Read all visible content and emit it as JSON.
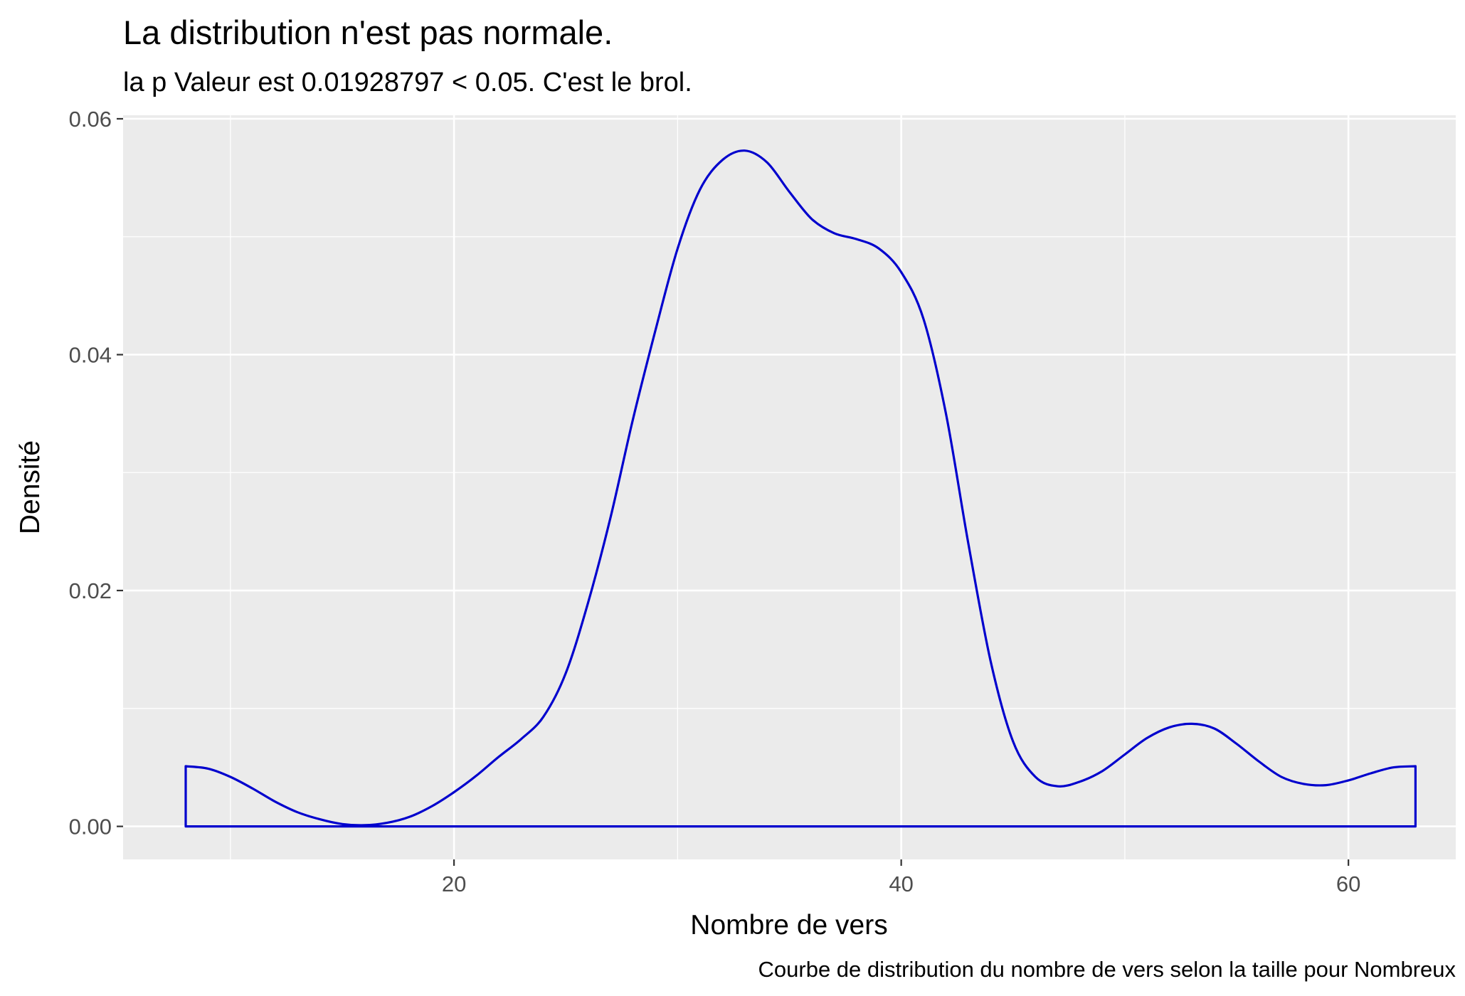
{
  "chart_data": {
    "type": "area",
    "title": "La distribution n'est pas normale.",
    "subtitle": "la p Valeur est  0.01928797  < 0.05. C'est le brol.",
    "xlabel": "Nombre de vers",
    "ylabel": "Densité",
    "caption": "Courbe de distribution du nombre de vers selon la taille pour  Nombreux",
    "xlim": [
      5.2,
      64.8
    ],
    "ylim": [
      -0.0028,
      0.0603
    ],
    "x_ticks": [
      20,
      40,
      60
    ],
    "x_tick_labels": [
      "20",
      "40",
      "60"
    ],
    "y_ticks": [
      0.0,
      0.02,
      0.04,
      0.06
    ],
    "y_tick_labels": [
      "0.00",
      "0.02",
      "0.04",
      "0.06"
    ],
    "grid": true,
    "panel_background": "#ebebeb",
    "grid_color": "#ffffff",
    "line_color": "#0000cd",
    "fill": "none",
    "series": [
      {
        "x": [
          8,
          9,
          10,
          11,
          12,
          13,
          14,
          15,
          16,
          17,
          18,
          19,
          20,
          21,
          22,
          23,
          24,
          25,
          26,
          27,
          28,
          29,
          30,
          31,
          32,
          33,
          34,
          35,
          36,
          37,
          38,
          39,
          40,
          41,
          42,
          43,
          44,
          45,
          46,
          47,
          48,
          49,
          50,
          51,
          52,
          53,
          54,
          55,
          56,
          57,
          58,
          59,
          60,
          61,
          62,
          63
        ],
        "values": [
          0.0051,
          0.0049,
          0.0042,
          0.0032,
          0.0021,
          0.0012,
          0.0006,
          0.0002,
          0.0001,
          0.0003,
          0.0008,
          0.0017,
          0.0029,
          0.0043,
          0.0059,
          0.0074,
          0.0093,
          0.013,
          0.019,
          0.0262,
          0.0345,
          0.042,
          0.049,
          0.054,
          0.0565,
          0.0573,
          0.0563,
          0.0538,
          0.0515,
          0.0503,
          0.0498,
          0.049,
          0.047,
          0.043,
          0.035,
          0.024,
          0.014,
          0.0072,
          0.0042,
          0.0034,
          0.0038,
          0.0047,
          0.0061,
          0.0075,
          0.0084,
          0.0087,
          0.0083,
          0.007,
          0.0055,
          0.0042,
          0.0036,
          0.0035,
          0.0039,
          0.0045,
          0.005,
          0.0051
        ]
      }
    ]
  }
}
